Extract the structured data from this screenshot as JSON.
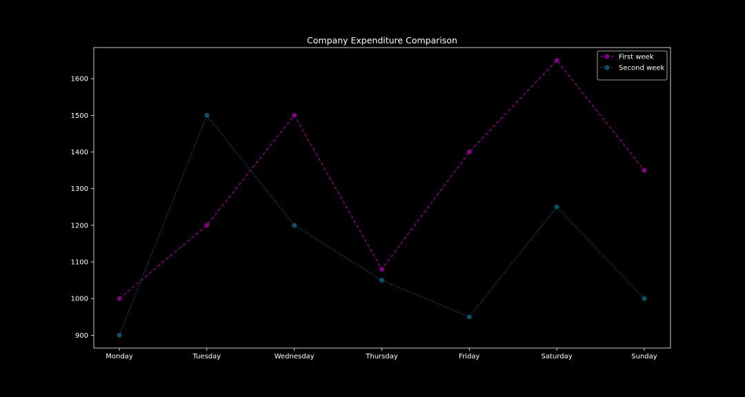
{
  "chart_data": {
    "type": "line",
    "title": "Company Expenditure Comparison",
    "xlabel": "",
    "ylabel": "",
    "categories": [
      "Monday",
      "Tuesday",
      "Wednesday",
      "Thursday",
      "Friday",
      "Saturday",
      "Sunday"
    ],
    "ylim": [
      865,
      1685
    ],
    "yticks": [
      900,
      1000,
      1100,
      1200,
      1300,
      1400,
      1500,
      1600
    ],
    "grid": false,
    "legend_position": "top-right",
    "background": "#000000",
    "foreground": "#ffffff",
    "series": [
      {
        "name": "First week",
        "values": [
          1000,
          1200,
          1500,
          1080,
          1400,
          1650,
          1350
        ],
        "color": "#800080",
        "line_style": "dashed",
        "marker": "circle"
      },
      {
        "name": "Second week",
        "values": [
          900,
          1500,
          1200,
          1050,
          950,
          1250,
          1000
        ],
        "color": "#0b5369",
        "line_style": "dotted",
        "marker": "circle"
      }
    ]
  }
}
